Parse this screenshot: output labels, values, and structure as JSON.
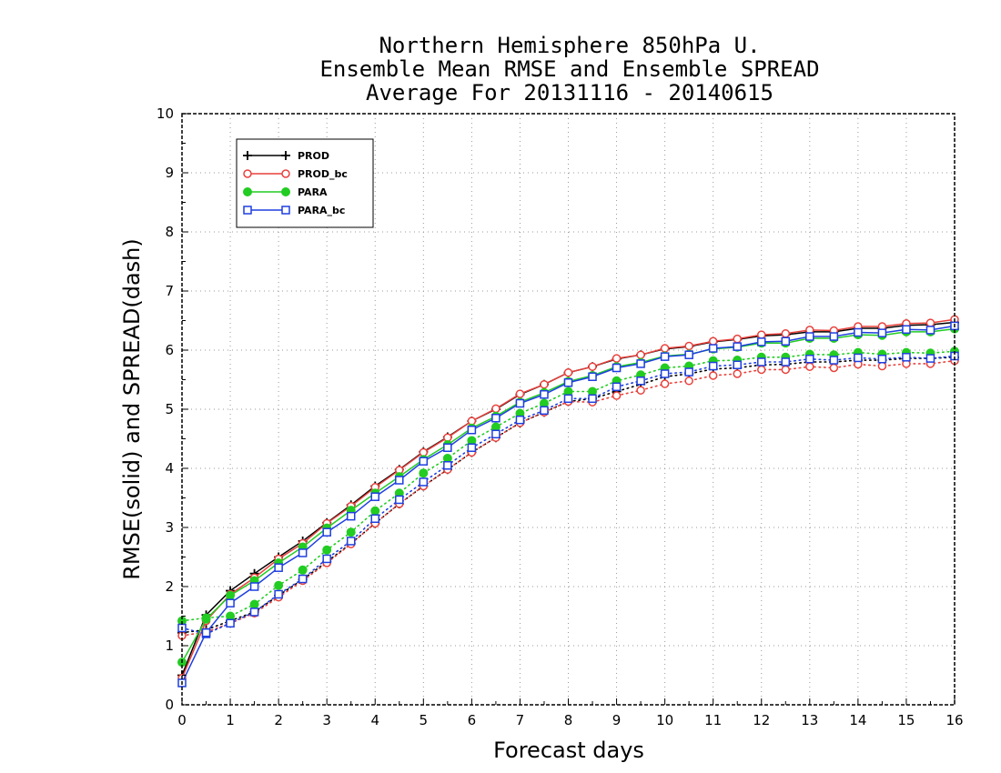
{
  "chart_data": {
    "type": "line",
    "title_lines": [
      "Northern Hemisphere 850hPa U.",
      "Ensemble Mean RMSE and Ensemble SPREAD",
      "Average For 20131116 - 20140615"
    ],
    "xlabel": "Forecast days",
    "ylabel": "RMSE(solid) and SPREAD(dash)",
    "xlim": [
      0,
      16
    ],
    "ylim": [
      0,
      10
    ],
    "xticks": [
      "0",
      "1",
      "2",
      "3",
      "4",
      "5",
      "6",
      "7",
      "8",
      "9",
      "10",
      "11",
      "12",
      "13",
      "14",
      "15",
      "16"
    ],
    "yticks": [
      "0",
      "1",
      "2",
      "3",
      "4",
      "5",
      "6",
      "7",
      "8",
      "9",
      "10"
    ],
    "grid": true,
    "legend_position": "top-left",
    "x": [
      0,
      0.5,
      1,
      1.5,
      2,
      2.5,
      3,
      3.5,
      4,
      4.5,
      5,
      5.5,
      6,
      6.5,
      7,
      7.5,
      8,
      8.5,
      9,
      9.5,
      10,
      10.5,
      11,
      11.5,
      12,
      12.5,
      13,
      13.5,
      14,
      14.5,
      15,
      15.5,
      16
    ],
    "series": [
      {
        "name": "PROD",
        "color": "#000000",
        "marker": "plus",
        "rmse": [
          0.5,
          1.52,
          1.93,
          2.22,
          2.5,
          2.77,
          3.08,
          3.38,
          3.7,
          3.98,
          4.28,
          4.53,
          4.8,
          5.0,
          5.25,
          5.42,
          5.62,
          5.72,
          5.85,
          5.92,
          6.02,
          6.06,
          6.14,
          6.18,
          6.24,
          6.26,
          6.31,
          6.31,
          6.37,
          6.37,
          6.42,
          6.43,
          6.47
        ],
        "spread": [
          1.22,
          1.27,
          1.42,
          1.57,
          1.85,
          2.12,
          2.42,
          2.73,
          3.07,
          3.4,
          3.7,
          3.98,
          4.27,
          4.52,
          4.77,
          4.95,
          5.13,
          5.18,
          5.3,
          5.42,
          5.55,
          5.6,
          5.68,
          5.7,
          5.75,
          5.76,
          5.8,
          5.8,
          5.83,
          5.83,
          5.86,
          5.86,
          5.88
        ]
      },
      {
        "name": "PROD_bc",
        "color": "#e8413c",
        "marker": "circle-open",
        "rmse": [
          0.45,
          1.42,
          1.87,
          2.15,
          2.47,
          2.73,
          3.07,
          3.36,
          3.68,
          3.97,
          4.27,
          4.52,
          4.8,
          5.01,
          5.26,
          5.42,
          5.62,
          5.72,
          5.86,
          5.92,
          6.03,
          6.07,
          6.15,
          6.19,
          6.26,
          6.28,
          6.34,
          6.33,
          6.4,
          6.4,
          6.45,
          6.46,
          6.52
        ],
        "spread": [
          1.17,
          1.23,
          1.38,
          1.55,
          1.82,
          2.1,
          2.4,
          2.72,
          3.07,
          3.4,
          3.7,
          3.98,
          4.27,
          4.52,
          4.77,
          4.95,
          5.13,
          5.12,
          5.23,
          5.32,
          5.43,
          5.48,
          5.57,
          5.6,
          5.67,
          5.67,
          5.72,
          5.7,
          5.76,
          5.73,
          5.77,
          5.77,
          5.82
        ]
      },
      {
        "name": "PARA",
        "color": "#22cc22",
        "marker": "circle-filled",
        "rmse": [
          0.72,
          1.45,
          1.85,
          2.1,
          2.4,
          2.67,
          2.99,
          3.29,
          3.58,
          3.86,
          4.15,
          4.4,
          4.68,
          4.88,
          5.12,
          5.28,
          5.47,
          5.57,
          5.72,
          5.79,
          5.9,
          5.93,
          6.02,
          6.05,
          6.12,
          6.12,
          6.2,
          6.2,
          6.26,
          6.25,
          6.31,
          6.31,
          6.36
        ],
        "spread": [
          1.42,
          1.47,
          1.5,
          1.7,
          2.02,
          2.28,
          2.62,
          2.92,
          3.28,
          3.58,
          3.92,
          4.17,
          4.47,
          4.7,
          4.93,
          5.1,
          5.3,
          5.3,
          5.48,
          5.58,
          5.7,
          5.73,
          5.82,
          5.83,
          5.88,
          5.88,
          5.93,
          5.92,
          5.96,
          5.93,
          5.96,
          5.95,
          5.98
        ]
      },
      {
        "name": "PARA_bc",
        "color": "#1f3fe0",
        "marker": "square-open",
        "rmse": [
          0.37,
          1.22,
          1.72,
          2.0,
          2.32,
          2.57,
          2.92,
          3.19,
          3.52,
          3.8,
          4.12,
          4.35,
          4.65,
          4.85,
          5.1,
          5.25,
          5.45,
          5.55,
          5.7,
          5.77,
          5.89,
          5.92,
          6.03,
          6.06,
          6.14,
          6.15,
          6.23,
          6.23,
          6.3,
          6.29,
          6.35,
          6.34,
          6.41
        ],
        "spread": [
          1.3,
          1.2,
          1.38,
          1.57,
          1.87,
          2.13,
          2.47,
          2.77,
          3.15,
          3.47,
          3.77,
          4.05,
          4.35,
          4.58,
          4.82,
          4.98,
          5.18,
          5.18,
          5.38,
          5.48,
          5.6,
          5.63,
          5.73,
          5.75,
          5.8,
          5.8,
          5.85,
          5.83,
          5.87,
          5.85,
          5.88,
          5.86,
          5.9
        ]
      }
    ]
  }
}
